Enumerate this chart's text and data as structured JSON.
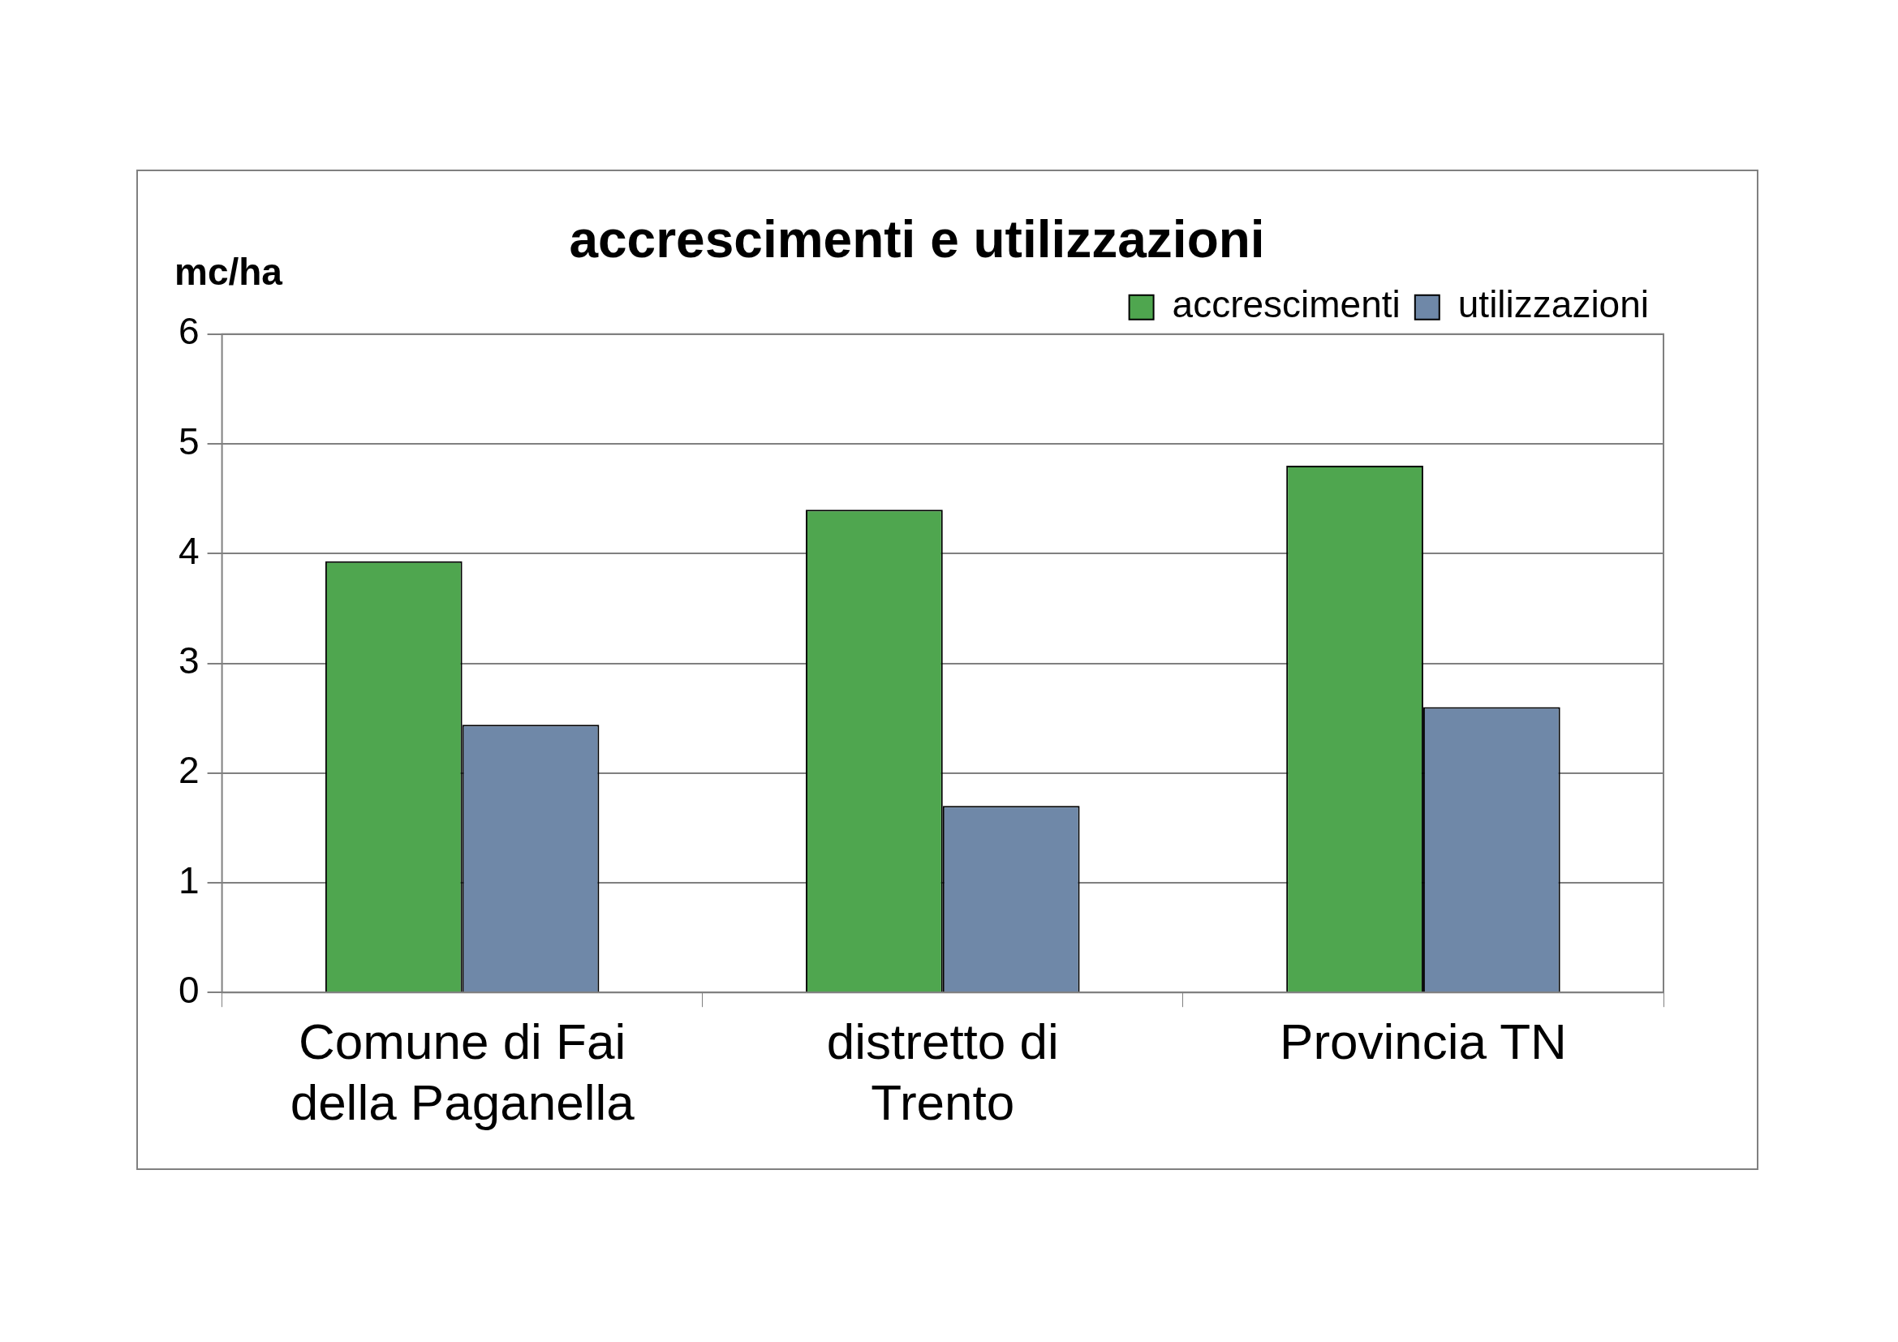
{
  "chart_data": {
    "type": "bar",
    "title": "accrescimenti e utilizzazioni",
    "ylabel": "mc/ha",
    "categories": [
      "Comune di Fai della Paganella",
      "distretto di Trento",
      "Provincia TN"
    ],
    "series": [
      {
        "name": "accrescimenti",
        "color": "#4fa64f",
        "values": [
          3.93,
          4.4,
          4.8
        ]
      },
      {
        "name": "utilizzazioni",
        "color": "#6f88a8",
        "values": [
          2.44,
          1.7,
          2.6
        ]
      }
    ],
    "ylim": [
      0,
      6
    ],
    "yticks": [
      0,
      1,
      2,
      3,
      4,
      5,
      6
    ],
    "grid": "y",
    "legend": "top right"
  }
}
